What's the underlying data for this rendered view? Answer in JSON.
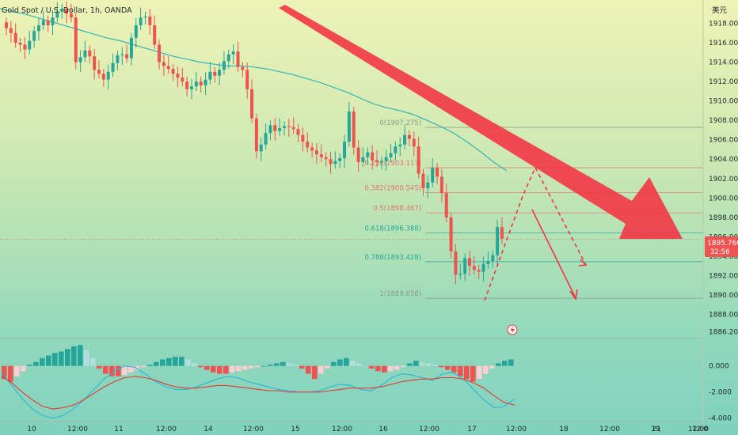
{
  "header": {
    "title": "Gold Spot / U.S. Dollar, 1h, OANDA",
    "currency": "美元"
  },
  "price_tag": {
    "price": "1895.760",
    "countdown": "32:56"
  },
  "colors": {
    "up": "#26a69a",
    "down": "#ef5350",
    "arrow": "#f23645",
    "ma": "#33b5b5",
    "fib": "#e57373",
    "fib_teal": "#26a69a",
    "macd": "#29b6d6",
    "signal": "#e53935"
  },
  "chart_data": [
    {
      "type": "candlestick",
      "title": "Gold Spot / U.S. Dollar, 1h, OANDA",
      "xlabel": "",
      "ylabel": "",
      "ylim": [
        1885.6,
        1920.4
      ],
      "y_ticks": [
        "1918.000",
        "1916.000",
        "1914.000",
        "1912.000",
        "1910.000",
        "1908.000",
        "1906.000",
        "1904.000",
        "1902.000",
        "1900.000",
        "1898.000",
        "1896.000",
        "1894.000",
        "1892.000",
        "1890.000",
        "1888.000",
        "1886.200"
      ],
      "x_ticks": [
        "10",
        "12:00",
        "11",
        "12:00",
        "14",
        "12:00",
        "15",
        "12:00",
        "16",
        "12:00",
        "17",
        "12:00",
        "18",
        "12:00",
        "19",
        "12:00",
        "21",
        "12:0"
      ],
      "close_series": [
        1917.5,
        1917.0,
        1916.0,
        1915.8,
        1915.3,
        1916.2,
        1917.2,
        1917.8,
        1918.3,
        1917.8,
        1918.6,
        1919.2,
        1919.5,
        1919.0,
        1918.6,
        1914.0,
        1914.5,
        1915.2,
        1914.6,
        1913.2,
        1912.8,
        1912.2,
        1913.0,
        1913.9,
        1914.7,
        1914.8,
        1914.4,
        1916.5,
        1917.8,
        1918.6,
        1918.7,
        1917.8,
        1915.8,
        1914.0,
        1913.6,
        1913.3,
        1912.8,
        1912.4,
        1912.0,
        1911.2,
        1911.5,
        1912.0,
        1911.6,
        1912.2,
        1913.0,
        1912.6,
        1913.2,
        1914.1,
        1914.8,
        1915.1,
        1913.5,
        1913.2,
        1911.2,
        1908.2,
        1904.8,
        1905.5,
        1906.7,
        1907.5,
        1906.9,
        1907.2,
        1907.4,
        1907.3,
        1907.1,
        1906.5,
        1905.8,
        1905.2,
        1904.9,
        1904.5,
        1904.2,
        1904.0,
        1903.5,
        1903.8,
        1904.1,
        1905.8,
        1908.9,
        1905.2,
        1903.7,
        1904.2,
        1904.7,
        1903.9,
        1903.7,
        1903.8,
        1904.2,
        1904.6,
        1905.3,
        1905.5,
        1906.5,
        1906.1,
        1905.3,
        1902.5,
        1901.0,
        1901.6,
        1903.1,
        1902.2,
        1900.5,
        1898.0,
        1894.5,
        1892.1,
        1892.2,
        1893.8,
        1893.0,
        1892.6,
        1892.4,
        1893.2,
        1893.5,
        1894.1,
        1897.0,
        1895.8
      ],
      "candles_shown": "green and red hourly candles; latest close 1895.760",
      "fibonacci": [
        {
          "label": "0(1907.275)",
          "value": 1907.275
        },
        {
          "label": "0.236(1903.117)",
          "value": 1903.117
        },
        {
          "label": "0.382(1900.545)",
          "value": 1900.545
        },
        {
          "label": "0.5(1898.467)",
          "value": 1898.467
        },
        {
          "label": "0.618(1896.388)",
          "value": 1896.388
        },
        {
          "label": "0.786(1893.428)",
          "value": 1893.428
        },
        {
          "label": "1(1889.658)",
          "value": 1889.658
        }
      ],
      "moving_average": [
        1919.5,
        1919.2,
        1918.9,
        1918.5,
        1918.1,
        1917.7,
        1917.3,
        1916.9,
        1916.5,
        1916.2,
        1915.8,
        1915.4,
        1915.0,
        1914.6,
        1914.3,
        1914.0,
        1913.8,
        1913.6,
        1913.6,
        1913.5,
        1913.3,
        1913.0,
        1912.7,
        1912.3,
        1911.9,
        1911.4,
        1910.9,
        1910.3,
        1909.7,
        1909.3,
        1909.0,
        1908.6,
        1908.0,
        1907.4,
        1906.7,
        1905.8,
        1904.8,
        1903.7,
        1902.8
      ],
      "annotations": [
        "large red bearish arrow pointing down-right",
        "dashed projection up then down",
        "solid projection down to ~1889.7"
      ]
    },
    {
      "type": "bar+line",
      "name": "MACD",
      "ylim": [
        -4.2,
        2.1
      ],
      "y_ticks": [
        "0.000",
        "-2.000",
        "-4.000"
      ],
      "histogram": [
        -1.0,
        -1.2,
        -0.8,
        -0.4,
        0.1,
        0.3,
        0.6,
        0.8,
        1.0,
        1.1,
        1.3,
        1.5,
        1.6,
        1.2,
        0.6,
        -0.2,
        -0.6,
        -0.8,
        -0.8,
        -0.7,
        -0.5,
        -0.3,
        -0.1,
        0.1,
        0.3,
        0.5,
        0.6,
        0.7,
        0.7,
        0.5,
        0.2,
        -0.1,
        -0.3,
        -0.5,
        -0.6,
        -0.6,
        -0.5,
        -0.4,
        -0.3,
        -0.2,
        -0.1,
        0.0,
        0.1,
        0.2,
        0.3,
        0.2,
        0.1,
        -0.2,
        -0.6,
        -1.0,
        -0.6,
        -0.2,
        0.3,
        0.5,
        0.6,
        0.4,
        0.2,
        0.0,
        -0.2,
        -0.4,
        -0.5,
        -0.4,
        -0.3,
        -0.1,
        0.2,
        0.4,
        0.3,
        0.2,
        0.1,
        -0.1,
        -0.3,
        -0.5,
        -0.8,
        -1.0,
        -1.2,
        -1.0,
        -0.6,
        -0.2,
        0.2,
        0.4,
        0.5
      ],
      "macd": [
        -0.5,
        -1.5,
        -2.5,
        -3.3,
        -3.8,
        -4.0,
        -3.8,
        -3.3,
        -2.6,
        -1.8,
        -1.0,
        -0.4,
        0.0,
        -0.1,
        -0.6,
        -1.2,
        -1.6,
        -1.8,
        -1.8,
        -1.6,
        -1.3,
        -1.0,
        -0.8,
        -0.9,
        -1.2,
        -1.4,
        -1.6,
        -1.8,
        -1.9,
        -2.0,
        -2.0,
        -1.9,
        -1.6,
        -1.4,
        -1.5,
        -1.8,
        -1.9,
        -1.5,
        -0.9,
        -0.6,
        -0.7,
        -0.9,
        -1.1,
        -0.6,
        -0.5,
        -1.0,
        -1.8,
        -2.6,
        -3.2,
        -3.1,
        -2.5
      ],
      "signal": [
        -0.8,
        -1.3,
        -2.0,
        -2.6,
        -3.1,
        -3.3,
        -3.2,
        -3.0,
        -2.6,
        -2.1,
        -1.6,
        -1.2,
        -0.9,
        -0.8,
        -0.9,
        -1.1,
        -1.4,
        -1.6,
        -1.7,
        -1.7,
        -1.6,
        -1.5,
        -1.5,
        -1.6,
        -1.7,
        -1.8,
        -1.9,
        -1.9,
        -2.0,
        -2.0,
        -2.0,
        -2.0,
        -1.9,
        -1.8,
        -1.7,
        -1.7,
        -1.7,
        -1.6,
        -1.4,
        -1.2,
        -1.1,
        -1.0,
        -1.0,
        -0.9,
        -0.9,
        -1.0,
        -1.3,
        -1.7,
        -2.3,
        -2.8,
        -3.0
      ]
    }
  ]
}
